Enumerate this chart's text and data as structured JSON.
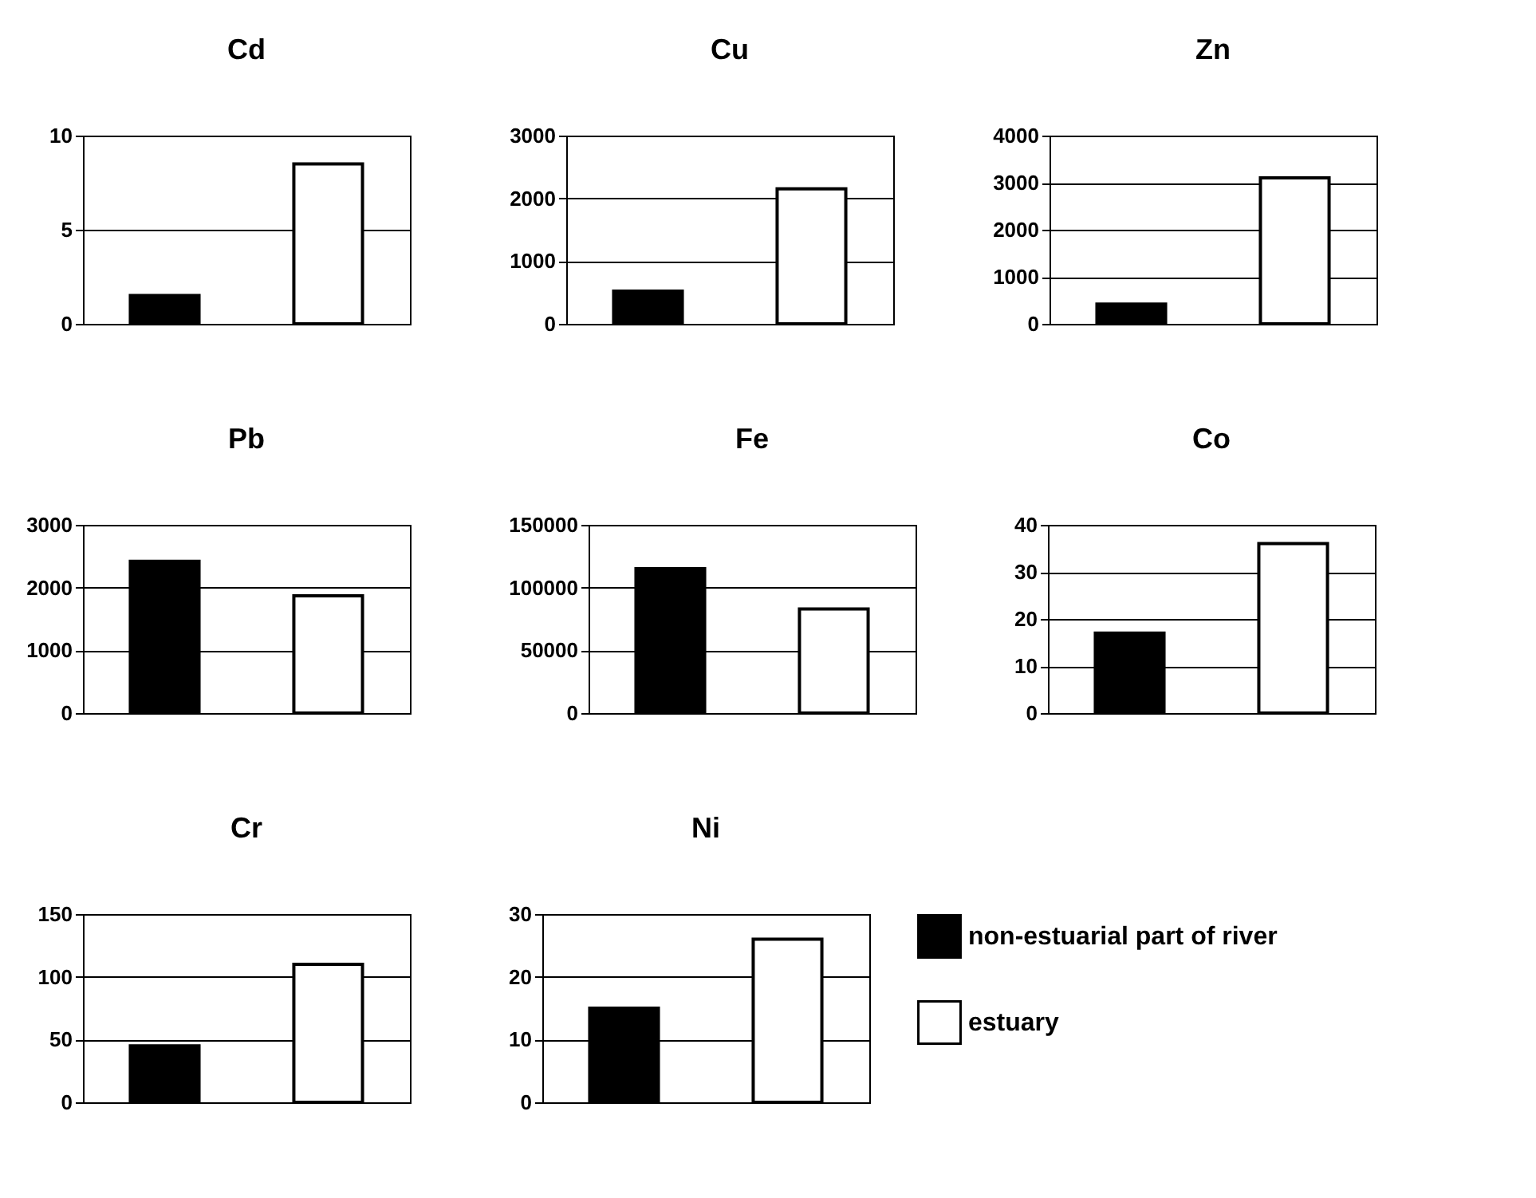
{
  "chart_data": [
    {
      "type": "bar",
      "title": "Cd",
      "categories": [
        null,
        null
      ],
      "ylim": [
        0,
        10
      ],
      "yticks": [
        0,
        5,
        10
      ],
      "grid": "y",
      "tick_labels": "y",
      "series": [
        {
          "color": "#000000",
          "values": [
            1.5,
            null
          ]
        },
        {
          "color": "#ffffff",
          "values": [
            null,
            8.5
          ]
        }
      ]
    },
    {
      "type": "bar",
      "title": "Cu",
      "categories": [
        null,
        null
      ],
      "ylim": [
        0,
        3000
      ],
      "yticks": [
        0,
        1000,
        2000,
        3000
      ],
      "grid": "y",
      "tick_labels": "y",
      "series": [
        {
          "color": "#000000",
          "values": [
            520,
            null
          ]
        },
        {
          "color": "#ffffff",
          "values": [
            null,
            2150
          ]
        }
      ]
    },
    {
      "type": "bar",
      "title": "Zn",
      "categories": [
        null,
        null
      ],
      "ylim": [
        0,
        4000
      ],
      "yticks": [
        0,
        1000,
        2000,
        3000,
        4000
      ],
      "grid": "y",
      "tick_labels": "y",
      "series": [
        {
          "color": "#000000",
          "values": [
            420,
            null
          ]
        },
        {
          "color": "#ffffff",
          "values": [
            null,
            3100
          ]
        }
      ]
    },
    {
      "type": "bar",
      "title": "Pb",
      "categories": [
        null,
        null
      ],
      "ylim": [
        0,
        3000
      ],
      "yticks": [
        0,
        1000,
        2000,
        3000
      ],
      "grid": "y",
      "tick_labels": "y",
      "series": [
        {
          "color": "#000000",
          "values": [
            2420,
            null
          ]
        },
        {
          "color": "#ffffff",
          "values": [
            null,
            1870
          ]
        }
      ]
    },
    {
      "type": "bar",
      "title": "Fe",
      "categories": [
        null,
        null
      ],
      "ylim": [
        0,
        150000
      ],
      "yticks": [
        0,
        50000,
        100000,
        150000
      ],
      "grid": "y",
      "tick_labels": "y",
      "series": [
        {
          "color": "#000000",
          "values": [
            115000,
            null
          ]
        },
        {
          "color": "#ffffff",
          "values": [
            null,
            83000
          ]
        }
      ]
    },
    {
      "type": "bar",
      "title": "Co",
      "categories": [
        null,
        null
      ],
      "ylim": [
        0,
        40
      ],
      "yticks": [
        0,
        10,
        20,
        30,
        40
      ],
      "grid": "y",
      "tick_labels": "y",
      "series": [
        {
          "color": "#000000",
          "values": [
            17,
            null
          ]
        },
        {
          "color": "#ffffff",
          "values": [
            null,
            36
          ]
        }
      ]
    },
    {
      "type": "bar",
      "title": "Cr",
      "categories": [
        null,
        null
      ],
      "ylim": [
        0,
        150
      ],
      "yticks": [
        0,
        50,
        100,
        150
      ],
      "grid": "y",
      "tick_labels": "y",
      "series": [
        {
          "color": "#000000",
          "values": [
            45,
            null
          ]
        },
        {
          "color": "#ffffff",
          "values": [
            null,
            110
          ]
        }
      ]
    },
    {
      "type": "bar",
      "title": "Ni",
      "categories": [
        null,
        null
      ],
      "ylim": [
        0,
        30
      ],
      "yticks": [
        0,
        10,
        20,
        30
      ],
      "grid": "y",
      "tick_labels": "y",
      "legend": "right",
      "series": [
        {
          "name": "non-estuarial part of river",
          "color": "#000000",
          "values": [
            15,
            null
          ]
        },
        {
          "name": "estuary",
          "color": "#ffffff",
          "values": [
            null,
            26
          ]
        }
      ]
    }
  ]
}
